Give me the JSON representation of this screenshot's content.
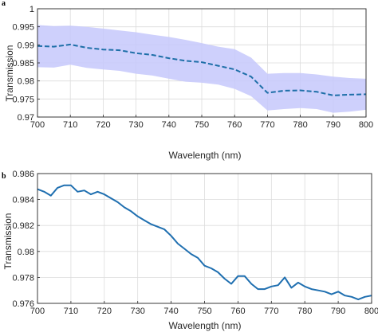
{
  "chart_data": [
    {
      "type": "area",
      "panel_label": "a",
      "xlabel": "Wavelength (nm)",
      "ylabel": "Transmission",
      "xlim": [
        700,
        800
      ],
      "ylim": [
        0.97,
        1.0
      ],
      "xticks": [
        "700",
        "710",
        "720",
        "730",
        "740",
        "750",
        "760",
        "770",
        "780",
        "790",
        "800"
      ],
      "yticks": [
        "0.97",
        "0.975",
        "0.98",
        "0.985",
        "0.99",
        "0.995",
        "1"
      ],
      "grid": true,
      "colors": {
        "mean_line": "#1e6fa8",
        "band": "#c6c8fb"
      },
      "x": [
        700,
        705,
        710,
        715,
        720,
        725,
        730,
        735,
        740,
        745,
        750,
        755,
        760,
        765,
        770,
        775,
        780,
        785,
        790,
        795,
        800
      ],
      "mean": [
        0.9897,
        0.9895,
        0.9901,
        0.9892,
        0.9887,
        0.9885,
        0.9877,
        0.9872,
        0.9863,
        0.9856,
        0.9852,
        0.9842,
        0.9832,
        0.9812,
        0.9767,
        0.9773,
        0.9774,
        0.977,
        0.976,
        0.9762,
        0.9763
      ],
      "upper": [
        0.9955,
        0.9952,
        0.9953,
        0.995,
        0.9945,
        0.994,
        0.9935,
        0.9928,
        0.9922,
        0.9914,
        0.9905,
        0.9895,
        0.9888,
        0.9865,
        0.982,
        0.9822,
        0.9822,
        0.9818,
        0.9812,
        0.9808,
        0.9806
      ],
      "lower": [
        0.9838,
        0.9837,
        0.9845,
        0.9836,
        0.9832,
        0.9828,
        0.982,
        0.9815,
        0.9806,
        0.9798,
        0.9795,
        0.979,
        0.9778,
        0.9758,
        0.9718,
        0.9722,
        0.9725,
        0.9722,
        0.9712,
        0.9715,
        0.972
      ]
    },
    {
      "type": "line",
      "panel_label": "b",
      "xlabel": "Wavelength (nm)",
      "ylabel": "Transmission",
      "xlim": [
        700,
        800
      ],
      "ylim": [
        0.976,
        0.986
      ],
      "xticks": [
        "700",
        "710",
        "720",
        "730",
        "740",
        "750",
        "760",
        "770",
        "780",
        "790",
        "800"
      ],
      "yticks": [
        "0.976",
        "0.978",
        "0.98",
        "0.982",
        "0.984",
        "0.986"
      ],
      "grid": true,
      "colors": {
        "line": "#1f6fb0"
      },
      "x": [
        700,
        702,
        704,
        706,
        708,
        710,
        712,
        714,
        716,
        718,
        720,
        722,
        724,
        726,
        728,
        730,
        732,
        734,
        736,
        738,
        740,
        742,
        744,
        746,
        748,
        750,
        752,
        754,
        756,
        758,
        760,
        762,
        764,
        766,
        768,
        770,
        772,
        774,
        776,
        778,
        780,
        782,
        784,
        786,
        788,
        790,
        792,
        794,
        796,
        798,
        800
      ],
      "y": [
        0.9848,
        0.9846,
        0.9843,
        0.9849,
        0.9851,
        0.9851,
        0.9846,
        0.9847,
        0.9844,
        0.9846,
        0.9844,
        0.9841,
        0.9838,
        0.9834,
        0.9831,
        0.9827,
        0.9824,
        0.9821,
        0.9819,
        0.9817,
        0.9812,
        0.9806,
        0.9802,
        0.9798,
        0.9795,
        0.9789,
        0.9787,
        0.9784,
        0.9779,
        0.9775,
        0.9781,
        0.9781,
        0.9775,
        0.9771,
        0.9771,
        0.9773,
        0.9774,
        0.978,
        0.9772,
        0.9776,
        0.9773,
        0.9771,
        0.977,
        0.9769,
        0.9767,
        0.9769,
        0.9766,
        0.9765,
        0.9763,
        0.9765,
        0.9766
      ]
    }
  ]
}
